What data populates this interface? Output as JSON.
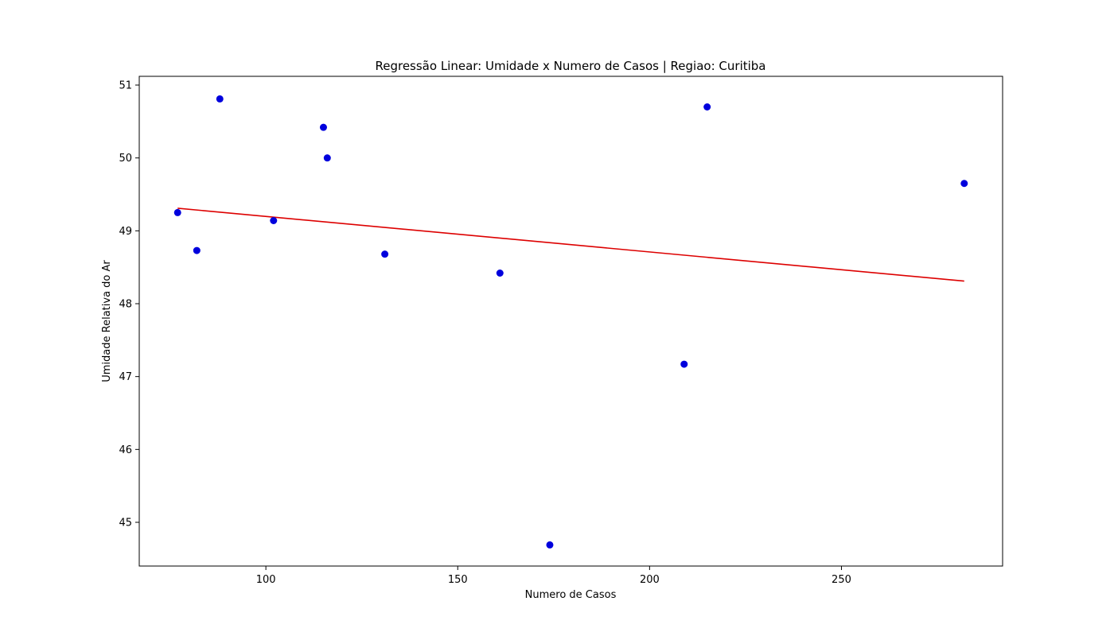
{
  "chart_data": {
    "type": "scatter",
    "title": "Regressão Linear: Umidade x Numero de Casos | Regiao: Curitiba",
    "xlabel": "Numero de Casos",
    "ylabel": "Umidade Relativa do Ar",
    "xlim": [
      67,
      292
    ],
    "ylim": [
      44.4,
      51.12
    ],
    "xticks": [
      100,
      150,
      200,
      250
    ],
    "yticks": [
      45,
      46,
      47,
      48,
      49,
      50,
      51
    ],
    "grid": false,
    "legend": "none",
    "series": [
      {
        "kind": "points",
        "color": "#0000dd",
        "points": [
          {
            "x": 77,
            "y": 49.25
          },
          {
            "x": 82,
            "y": 48.73
          },
          {
            "x": 88,
            "y": 50.81
          },
          {
            "x": 102,
            "y": 49.14
          },
          {
            "x": 115,
            "y": 50.42
          },
          {
            "x": 116,
            "y": 50.0
          },
          {
            "x": 131,
            "y": 48.68
          },
          {
            "x": 161,
            "y": 48.42
          },
          {
            "x": 174,
            "y": 44.69
          },
          {
            "x": 209,
            "y": 47.17
          },
          {
            "x": 215,
            "y": 50.7
          },
          {
            "x": 282,
            "y": 49.65
          }
        ]
      },
      {
        "kind": "line",
        "color": "#dd0000",
        "points": [
          {
            "x": 77,
            "y": 49.31
          },
          {
            "x": 282,
            "y": 48.31
          }
        ]
      }
    ]
  }
}
